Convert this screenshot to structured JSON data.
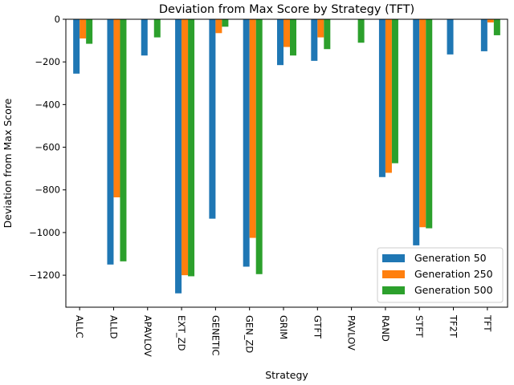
{
  "chart_data": {
    "type": "bar",
    "title": "Deviation from Max Score by Strategy (TFT)",
    "xlabel": "Strategy",
    "ylabel": "Deviation from Max Score",
    "ylim": [
      -1350,
      0
    ],
    "yticks": [
      0,
      -200,
      -400,
      -600,
      -800,
      -1000,
      -1200
    ],
    "grid": false,
    "legend_position": "bottom-right",
    "categories": [
      "ALLC",
      "ALLD",
      "APAVLOV",
      "EXT_ZD",
      "GENETIC",
      "GEN_ZD",
      "GRIM",
      "GTFT",
      "PAVLOV",
      "RAND",
      "STFT",
      "TF2T",
      "TFT"
    ],
    "series": [
      {
        "name": "Generation 50",
        "color": "#1f77b4",
        "values": [
          -255,
          -1150,
          -170,
          -1285,
          -935,
          -1160,
          -215,
          -195,
          0,
          -740,
          -1060,
          -165,
          -150
        ]
      },
      {
        "name": "Generation 250",
        "color": "#ff7f0e",
        "values": [
          -90,
          -835,
          0,
          -1200,
          -65,
          -1025,
          -130,
          -85,
          0,
          -720,
          -975,
          0,
          -15
        ]
      },
      {
        "name": "Generation 500",
        "color": "#2ca02c",
        "values": [
          -115,
          -1135,
          -85,
          -1205,
          -35,
          -1195,
          -170,
          -140,
          -110,
          -675,
          -980,
          0,
          -75
        ]
      }
    ]
  }
}
